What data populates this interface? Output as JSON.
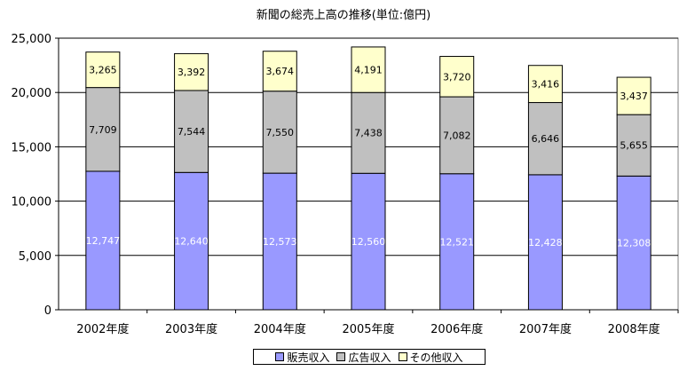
{
  "chart_data": {
    "type": "bar",
    "stacked": true,
    "title": "新聞の総売上高の推移(単位:億円)",
    "categories": [
      "2002年度",
      "2003年度",
      "2004年度",
      "2005年度",
      "2006年度",
      "2007年度",
      "2008年度"
    ],
    "series": [
      {
        "name": "販売収入",
        "color": "#9999ff",
        "values": [
          12747,
          12640,
          12573,
          12560,
          12521,
          12428,
          12308
        ],
        "labels": [
          "12,747",
          "12,640",
          "12,573",
          "12,560",
          "12,521",
          "12,428",
          "12,308"
        ]
      },
      {
        "name": "広告収入",
        "color": "#c0c0c0",
        "values": [
          7709,
          7544,
          7550,
          7438,
          7082,
          6646,
          5655
        ],
        "labels": [
          "7,709",
          "7,544",
          "7,550",
          "7,438",
          "7,082",
          "6,646",
          "5,655"
        ]
      },
      {
        "name": "その他収入",
        "color": "#ffffcc",
        "values": [
          3265,
          3392,
          3674,
          4191,
          3720,
          3416,
          3437
        ],
        "labels": [
          "3,265",
          "3,392",
          "3,674",
          "4,191",
          "3,720",
          "3,416",
          "3,437"
        ]
      }
    ],
    "ylim": [
      0,
      25000
    ],
    "yticks": [
      0,
      5000,
      10000,
      15000,
      20000,
      25000
    ],
    "ytick_labels": [
      "0",
      "5,000",
      "10,000",
      "15,000",
      "20,000",
      "25,000"
    ],
    "grid": true,
    "legend_position": "bottom"
  }
}
